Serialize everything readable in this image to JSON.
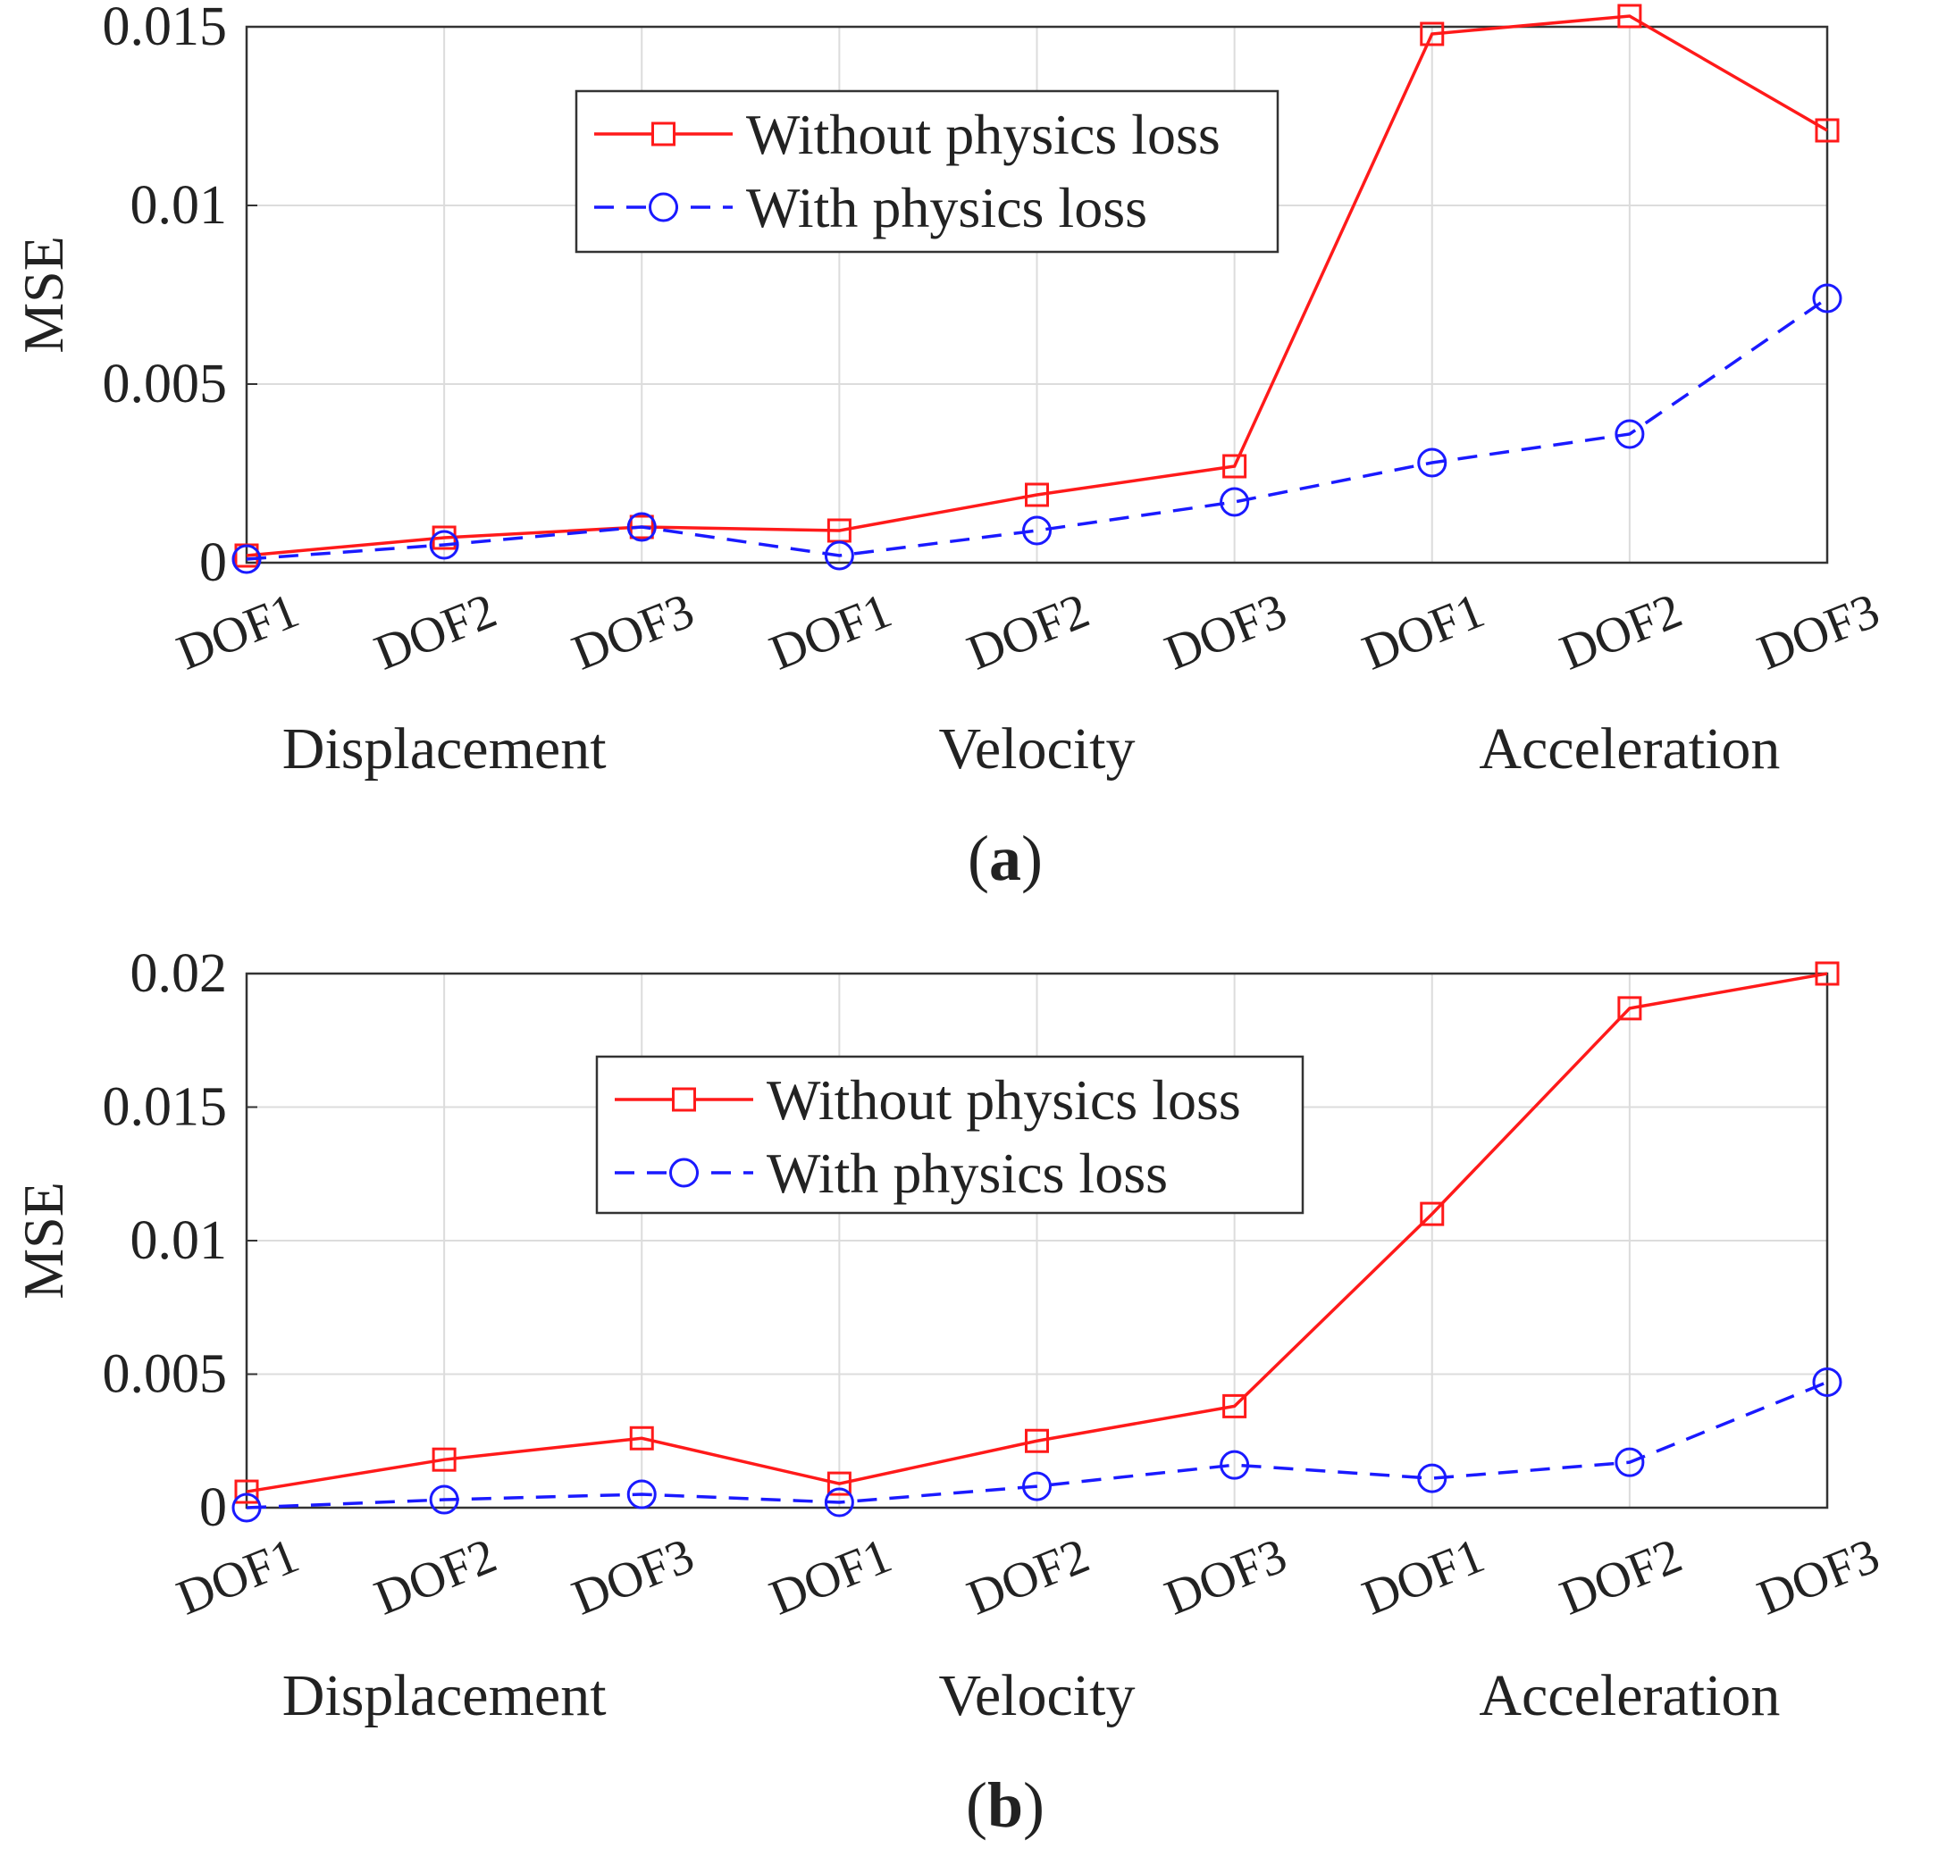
{
  "chart_data": [
    {
      "type": "line",
      "panel_label": "a",
      "ylabel": "MSE",
      "xlabel": "",
      "ylim": [
        0,
        0.015
      ],
      "yticks": [
        "0",
        "0.005",
        "0.01",
        "0.015"
      ],
      "ytick_values": [
        0,
        0.005,
        0.01,
        0.015
      ],
      "categories": [
        "DOF1",
        "DOF2",
        "DOF3",
        "DOF1",
        "DOF2",
        "DOF3",
        "DOF1",
        "DOF2",
        "DOF3"
      ],
      "groups": [
        "Displacement",
        "Velocity",
        "Acceleration"
      ],
      "grid": true,
      "legend_position": "top-center",
      "series": [
        {
          "name": "Without physics loss",
          "color": "#ff1a1a",
          "marker": "square",
          "line": "solid",
          "values": [
            0.0002,
            0.0007,
            0.001,
            0.0009,
            0.0019,
            0.0027,
            0.0148,
            0.0153,
            0.0121
          ]
        },
        {
          "name": "With physics loss",
          "color": "#1a1aff",
          "marker": "circle",
          "line": "dashed",
          "values": [
            0.0001,
            0.0005,
            0.001,
            0.0002,
            0.0009,
            0.0017,
            0.0028,
            0.0036,
            0.0074
          ]
        }
      ]
    },
    {
      "type": "line",
      "panel_label": "b",
      "ylabel": "MSE",
      "xlabel": "",
      "ylim": [
        0,
        0.02
      ],
      "yticks": [
        "0",
        "0.005",
        "0.01",
        "0.015",
        "0.02"
      ],
      "ytick_values": [
        0,
        0.005,
        0.01,
        0.015,
        0.02
      ],
      "categories": [
        "DOF1",
        "DOF2",
        "DOF3",
        "DOF1",
        "DOF2",
        "DOF3",
        "DOF1",
        "DOF2",
        "DOF3"
      ],
      "groups": [
        "Displacement",
        "Velocity",
        "Acceleration"
      ],
      "grid": true,
      "legend_position": "top-center",
      "series": [
        {
          "name": "Without physics loss",
          "color": "#ff1a1a",
          "marker": "square",
          "line": "solid",
          "values": [
            0.0006,
            0.0018,
            0.0026,
            0.0009,
            0.0025,
            0.0038,
            0.011,
            0.0187,
            0.02
          ]
        },
        {
          "name": "With physics loss",
          "color": "#1a1aff",
          "marker": "circle",
          "line": "dashed",
          "values": [
            0.0,
            0.0003,
            0.0005,
            0.0002,
            0.0008,
            0.0016,
            0.0011,
            0.0017,
            0.0047
          ]
        }
      ]
    }
  ]
}
